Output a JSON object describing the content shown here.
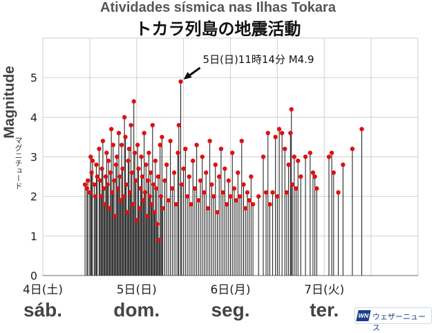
{
  "chart_data": {
    "type": "scatter",
    "title": "Atividades sísmica nas Ilhas Tokara",
    "subtitle": "トカラ列島の地震活動",
    "ylabel": "Magnitude",
    "ylabel_jp": "マグニチュード",
    "ylim": [
      0,
      6
    ],
    "xlim": [
      0,
      4
    ],
    "y_ticks": [
      "0",
      "1",
      "2",
      "3",
      "4",
      "5"
    ],
    "x_ticks": [
      {
        "x": 0,
        "label": "4日(土)",
        "label_pt": "sáb."
      },
      {
        "x": 1,
        "label": "5日(日)",
        "label_pt": "dom."
      },
      {
        "x": 2,
        "label": "6日(月)",
        "label_pt": "seg."
      },
      {
        "x": 3,
        "label": "7日(火)",
        "label_pt": "ter."
      }
    ],
    "grid": true,
    "marker_color": "#e01010",
    "stem_color": "#111111",
    "annotation": {
      "text": "5日(日)11時14分 M4.9",
      "x": 1.47,
      "y": 4.9
    },
    "points": [
      [
        0.45,
        2.3
      ],
      [
        0.47,
        2.2
      ],
      [
        0.48,
        2.4
      ],
      [
        0.5,
        2.1
      ],
      [
        0.51,
        3.0
      ],
      [
        0.52,
        2.6
      ],
      [
        0.53,
        2.9
      ],
      [
        0.55,
        2.3
      ],
      [
        0.56,
        2.0
      ],
      [
        0.57,
        2.8
      ],
      [
        0.58,
        2.5
      ],
      [
        0.6,
        3.2
      ],
      [
        0.61,
        2.4
      ],
      [
        0.62,
        2.0
      ],
      [
        0.63,
        2.7
      ],
      [
        0.64,
        3.4
      ],
      [
        0.65,
        2.2
      ],
      [
        0.66,
        1.8
      ],
      [
        0.67,
        2.5
      ],
      [
        0.68,
        3.1
      ],
      [
        0.69,
        2.3
      ],
      [
        0.7,
        2.9
      ],
      [
        0.71,
        1.7
      ],
      [
        0.72,
        2.6
      ],
      [
        0.73,
        3.7
      ],
      [
        0.74,
        2.1
      ],
      [
        0.75,
        3.3
      ],
      [
        0.76,
        2.4
      ],
      [
        0.77,
        1.5
      ],
      [
        0.78,
        2.8
      ],
      [
        0.79,
        3.0
      ],
      [
        0.8,
        2.2
      ],
      [
        0.81,
        3.6
      ],
      [
        0.82,
        2.5
      ],
      [
        0.83,
        1.9
      ],
      [
        0.84,
        3.3
      ],
      [
        0.85,
        2.7
      ],
      [
        0.86,
        2.0
      ],
      [
        0.87,
        4.0
      ],
      [
        0.88,
        3.5
      ],
      [
        0.89,
        2.3
      ],
      [
        0.9,
        1.6
      ],
      [
        0.91,
        2.9
      ],
      [
        0.92,
        3.2
      ],
      [
        0.93,
        2.1
      ],
      [
        0.94,
        3.8
      ],
      [
        0.95,
        2.6
      ],
      [
        0.96,
        1.8
      ],
      [
        0.97,
        4.4
      ],
      [
        0.98,
        3.1
      ],
      [
        0.99,
        2.4
      ],
      [
        1.0,
        1.4
      ],
      [
        1.01,
        3.3
      ],
      [
        1.02,
        2.7
      ],
      [
        1.03,
        1.7
      ],
      [
        1.04,
        2.2
      ],
      [
        1.05,
        3.0
      ],
      [
        1.06,
        2.5
      ],
      [
        1.07,
        1.9
      ],
      [
        1.08,
        3.6
      ],
      [
        1.09,
        2.1
      ],
      [
        1.1,
        2.8
      ],
      [
        1.11,
        1.5
      ],
      [
        1.12,
        2.4
      ],
      [
        1.13,
        3.1
      ],
      [
        1.14,
        2.0
      ],
      [
        1.15,
        2.6
      ],
      [
        1.16,
        1.8
      ],
      [
        1.17,
        3.8
      ],
      [
        1.18,
        2.3
      ],
      [
        1.19,
        1.6
      ],
      [
        1.2,
        2.9
      ],
      [
        1.21,
        2.2
      ],
      [
        1.22,
        1.3
      ],
      [
        1.23,
        2.5
      ],
      [
        1.24,
        0.9
      ],
      [
        1.25,
        3.3
      ],
      [
        1.26,
        2.0
      ],
      [
        1.27,
        3.5
      ],
      [
        1.28,
        1.7
      ],
      [
        1.3,
        2.4
      ],
      [
        1.32,
        2.8
      ],
      [
        1.34,
        1.9
      ],
      [
        1.36,
        3.4
      ],
      [
        1.38,
        2.2
      ],
      [
        1.4,
        2.6
      ],
      [
        1.42,
        1.8
      ],
      [
        1.44,
        3.1
      ],
      [
        1.45,
        3.8
      ],
      [
        1.47,
        4.9
      ],
      [
        1.48,
        2.3
      ],
      [
        1.5,
        2.7
      ],
      [
        1.52,
        3.2
      ],
      [
        1.54,
        2.0
      ],
      [
        1.56,
        2.5
      ],
      [
        1.58,
        1.8
      ],
      [
        1.6,
        2.9
      ],
      [
        1.62,
        2.2
      ],
      [
        1.64,
        3.3
      ],
      [
        1.66,
        1.9
      ],
      [
        1.68,
        2.4
      ],
      [
        1.7,
        3.0
      ],
      [
        1.72,
        2.1
      ],
      [
        1.74,
        2.6
      ],
      [
        1.76,
        1.7
      ],
      [
        1.78,
        3.4
      ],
      [
        1.8,
        2.3
      ],
      [
        1.82,
        2.0
      ],
      [
        1.84,
        2.8
      ],
      [
        1.86,
        1.6
      ],
      [
        1.88,
        2.5
      ],
      [
        1.9,
        3.2
      ],
      [
        1.92,
        2.1
      ],
      [
        1.94,
        2.7
      ],
      [
        1.96,
        1.8
      ],
      [
        1.98,
        2.4
      ],
      [
        2.0,
        2.0
      ],
      [
        2.02,
        3.1
      ],
      [
        2.04,
        2.2
      ],
      [
        2.06,
        1.9
      ],
      [
        2.08,
        2.6
      ],
      [
        2.1,
        2.0
      ],
      [
        2.12,
        3.4
      ],
      [
        2.14,
        2.3
      ],
      [
        2.16,
        1.7
      ],
      [
        2.18,
        2.1
      ],
      [
        2.2,
        1.9
      ],
      [
        2.22,
        2.5
      ],
      [
        2.24,
        1.8
      ],
      [
        2.3,
        2.0
      ],
      [
        2.35,
        3.0
      ],
      [
        2.38,
        2.1
      ],
      [
        2.4,
        3.6
      ],
      [
        2.42,
        1.8
      ],
      [
        2.45,
        2.1
      ],
      [
        2.48,
        3.5
      ],
      [
        2.5,
        2.0
      ],
      [
        2.52,
        3.7
      ],
      [
        2.55,
        3.6
      ],
      [
        2.58,
        3.2
      ],
      [
        2.6,
        2.1
      ],
      [
        2.62,
        2.8
      ],
      [
        2.64,
        3.6
      ],
      [
        2.65,
        4.2
      ],
      [
        2.66,
        2.3
      ],
      [
        2.68,
        3.0
      ],
      [
        2.7,
        2.2
      ],
      [
        2.72,
        2.9
      ],
      [
        2.75,
        2.5
      ],
      [
        2.8,
        3.0
      ],
      [
        2.85,
        3.1
      ],
      [
        2.88,
        2.6
      ],
      [
        2.9,
        2.5
      ],
      [
        2.92,
        2.2
      ],
      [
        3.05,
        3.0
      ],
      [
        3.08,
        3.1
      ],
      [
        3.1,
        2.6
      ],
      [
        3.15,
        2.1
      ],
      [
        3.2,
        2.8
      ],
      [
        3.3,
        3.2
      ],
      [
        3.4,
        3.7
      ]
    ]
  },
  "branding": {
    "logo_mark": "WN",
    "logo_text": "ウェザーニュース"
  }
}
